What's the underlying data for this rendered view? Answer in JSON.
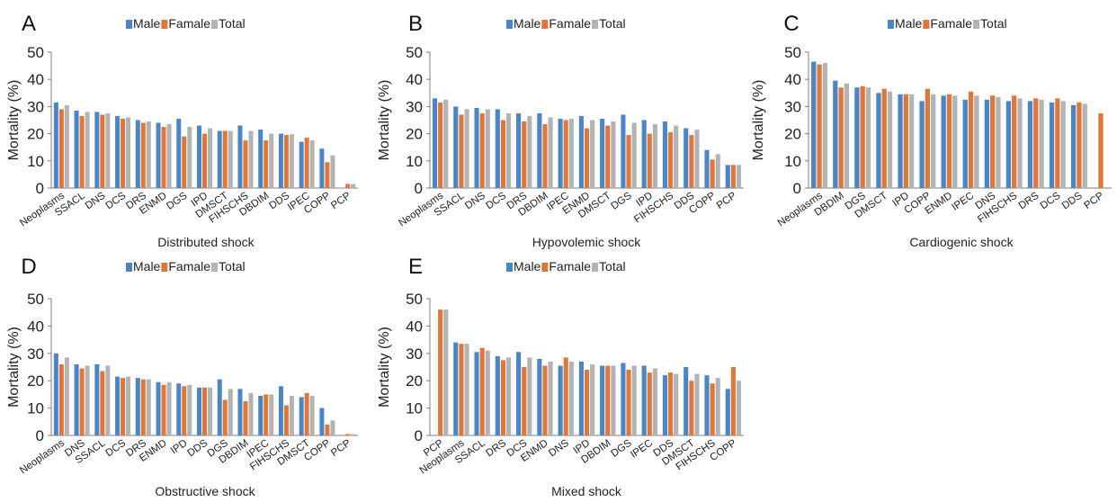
{
  "colors": {
    "male": "#4a86c6",
    "female": "#e0773a",
    "total": "#b3b3b3",
    "axis": "#7f7f7f"
  },
  "chart_data": [
    {
      "letter": "A",
      "type": "bar",
      "title": "Distributed shock",
      "ylabel": "Mortality (%)",
      "ylim": [
        0,
        50
      ],
      "yticks": [
        "0",
        "10",
        "20",
        "30",
        "40",
        "50"
      ],
      "grid": false,
      "legend_placement": "top",
      "legend": [
        "Male",
        "Famale",
        "Total"
      ],
      "categories": [
        "Neoplasms",
        "SSACL",
        "DNS",
        "DCS",
        "DRS",
        "ENMD",
        "DGS",
        "IPD",
        "DMSCT",
        "FIHSCHS",
        "DBDIM",
        "DDS",
        "IPEC",
        "COPP",
        "PCP"
      ],
      "series": [
        {
          "name": "Male",
          "values": [
            31.5,
            28.5,
            28,
            26.5,
            25,
            24,
            25.5,
            23,
            21,
            23,
            21.5,
            20,
            17,
            14.5,
            0
          ]
        },
        {
          "name": "Famale",
          "values": [
            29,
            26.5,
            27,
            25.5,
            24,
            22.5,
            19,
            20,
            21,
            17.5,
            17.5,
            19.5,
            18.5,
            9.5,
            1.5
          ]
        },
        {
          "name": "Total",
          "values": [
            30.5,
            28,
            27.5,
            26,
            24.5,
            23.5,
            22.5,
            22,
            21,
            21,
            20,
            19.8,
            17.5,
            12,
            1.5
          ]
        }
      ]
    },
    {
      "letter": "B",
      "type": "bar",
      "title": "Hypovolemic shock",
      "ylabel": "Mortality (%)",
      "ylim": [
        0,
        50
      ],
      "yticks": [
        "0",
        "10",
        "20",
        "30",
        "40",
        "50"
      ],
      "grid": false,
      "legend_placement": "top",
      "legend": [
        "Male",
        "Famale",
        "Total"
      ],
      "categories": [
        "Neoplasms",
        "SSACL",
        "DNS",
        "DCS",
        "DRS",
        "DBDIM",
        "IPEC",
        "ENMD",
        "DMSCT",
        "DGS",
        "IPD",
        "FIHSCHS",
        "DDS",
        "COPP",
        "PCP"
      ],
      "series": [
        {
          "name": "Male",
          "values": [
            33,
            30,
            29.5,
            29,
            27.5,
            27.5,
            25.5,
            26.5,
            25.5,
            27,
            25,
            24.5,
            22,
            14,
            8.5
          ]
        },
        {
          "name": "Famale",
          "values": [
            31.5,
            27,
            27.5,
            25,
            24.5,
            23.5,
            25,
            22,
            23,
            19.5,
            20,
            20.5,
            19.5,
            10.5,
            8.5
          ]
        },
        {
          "name": "Total",
          "values": [
            32.5,
            29,
            29,
            27.5,
            26.5,
            26,
            25.5,
            25,
            24.5,
            24,
            23.5,
            23,
            21.5,
            12.5,
            8.5
          ]
        }
      ]
    },
    {
      "letter": "C",
      "type": "bar",
      "title": "Cardiogenic shock",
      "ylabel": "Mortality (%)",
      "ylim": [
        0,
        50
      ],
      "yticks": [
        "0",
        "10",
        "20",
        "30",
        "40",
        "50"
      ],
      "grid": false,
      "legend_placement": "top",
      "legend": [
        "Male",
        "Famale",
        "Total"
      ],
      "categories": [
        "Neoplasms",
        "DBDIM",
        "DGS",
        "DMSCT",
        "IPD",
        "COPP",
        "ENMD",
        "IPEC",
        "DNS",
        "FIHSCHS",
        "DRS",
        "DCS",
        "DDS",
        "PCP"
      ],
      "series": [
        {
          "name": "Male",
          "values": [
            46.5,
            39.5,
            37,
            35,
            34.5,
            32,
            34,
            32.5,
            32.5,
            32,
            32,
            31.5,
            30.5,
            0
          ]
        },
        {
          "name": "Famale",
          "values": [
            45.5,
            37,
            37.5,
            36.5,
            34.5,
            36.5,
            34.5,
            35.5,
            34,
            34,
            33,
            33,
            31.5,
            27.5
          ]
        },
        {
          "name": "Total",
          "values": [
            46,
            38.5,
            37,
            35.5,
            34.5,
            34.5,
            34,
            34,
            33.5,
            33,
            32.5,
            32,
            31,
            0
          ]
        }
      ]
    },
    {
      "letter": "D",
      "type": "bar",
      "title": "Obstructive shock",
      "ylabel": "Mortality (%)",
      "ylim": [
        0,
        50
      ],
      "yticks": [
        "0",
        "10",
        "20",
        "30",
        "40",
        "50"
      ],
      "grid": false,
      "legend_placement": "top",
      "legend": [
        "Male",
        "Famale",
        "Total"
      ],
      "categories": [
        "Neoplasms",
        "DNS",
        "SSACL",
        "DCS",
        "DRS",
        "ENMD",
        "IPD",
        "DDS",
        "DGS",
        "DBDIM",
        "IPEC",
        "FIHSCHS",
        "DMSCT",
        "COPP",
        "PCP"
      ],
      "series": [
        {
          "name": "Male",
          "values": [
            30,
            26,
            26,
            21.5,
            21,
            19.5,
            19,
            17.5,
            20.5,
            17,
            14.5,
            18,
            14,
            10,
            0
          ]
        },
        {
          "name": "Famale",
          "values": [
            26,
            24.5,
            23.5,
            21,
            20.5,
            18.5,
            18,
            17.5,
            13,
            12.5,
            15,
            11,
            15.5,
            4,
            0.5
          ]
        },
        {
          "name": "Total",
          "values": [
            28.5,
            25.5,
            25.5,
            21.5,
            20.5,
            19.5,
            18.5,
            17.5,
            17,
            15.5,
            15,
            14.5,
            14.5,
            5.5,
            0.5
          ]
        }
      ]
    },
    {
      "letter": "E",
      "type": "bar",
      "title": "Mixed shock",
      "ylabel": "Mortality (%)",
      "ylim": [
        0,
        50
      ],
      "yticks": [
        "0",
        "10",
        "20",
        "30",
        "40",
        "50"
      ],
      "grid": false,
      "legend_placement": "top",
      "legend": [
        "Male",
        "Famale",
        "Total"
      ],
      "categories": [
        "PCP",
        "Neoplasms",
        "SSACL",
        "DRS",
        "DCS",
        "ENMD",
        "DNS",
        "IPD",
        "DBDIM",
        "DGS",
        "IPEC",
        "DDS",
        "DMSCT",
        "FIHSCHS",
        "COPP"
      ],
      "series": [
        {
          "name": "Male",
          "values": [
            0,
            34,
            30.5,
            29,
            30.5,
            28,
            25.5,
            27,
            25.5,
            26.5,
            25.5,
            22,
            25,
            22,
            17
          ]
        },
        {
          "name": "Famale",
          "values": [
            46,
            33.5,
            32,
            27.5,
            25,
            25.5,
            28.5,
            24,
            25.5,
            24,
            23,
            23,
            20,
            19,
            25
          ]
        },
        {
          "name": "Total",
          "values": [
            46,
            33.5,
            31,
            28.5,
            28.5,
            27,
            27,
            26,
            25.5,
            25.5,
            24.5,
            22.5,
            22.5,
            21,
            20
          ]
        }
      ]
    }
  ]
}
